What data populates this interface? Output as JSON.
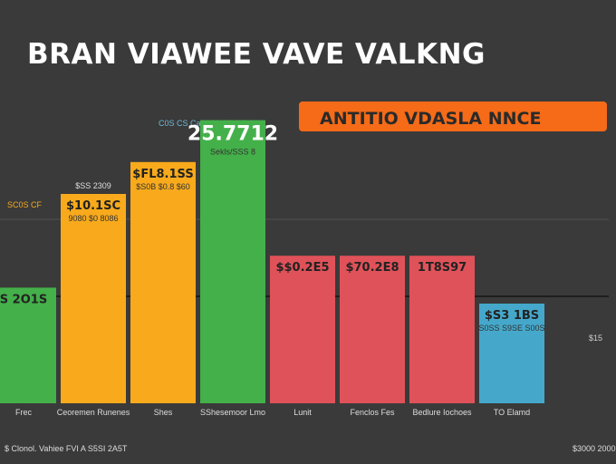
{
  "chart_data": {
    "type": "bar",
    "title": "BRAN VIAWEE VAVE VALKNG",
    "banner": "ANTITIO VDASLA NNCE",
    "top_annotation": "C0S CS CaiN  $8 SS.GS 0II",
    "left_annotation": "SC0S CF",
    "right_axis_label": "$15",
    "footer_left": "$ Clonol. Vahiee  FVI A  S5SI 2A5T",
    "footer_right": "$3000 2000",
    "bars": [
      {
        "category": "Frec",
        "value": 0.29,
        "color": "#44b04a",
        "label": "S 2O1S",
        "sublabel": ""
      },
      {
        "category": "Ceoremen Runenes",
        "value": 0.525,
        "color": "#f8aa1c",
        "label": "$10.1SC",
        "sublabel": "9080 $0 8086",
        "top_label": "$SS 2309"
      },
      {
        "category": "Shes",
        "value": 0.605,
        "color": "#f8aa1c",
        "label": "$FL8.1SS",
        "sublabel": "$S0B $0.8 $60"
      },
      {
        "category": "SShesemoor Lmo",
        "value": 0.71,
        "color": "#44b04a",
        "label": "25.7712",
        "sublabel": "Sekls/SSS 8"
      },
      {
        "category": "Lunit",
        "value": 0.37,
        "color": "#e05259",
        "label": "$$0.2E5",
        "sublabel": ""
      },
      {
        "category": "Fenclos Fes",
        "value": 0.37,
        "color": "#e05259",
        "label": "$70.2E8",
        "sublabel": ""
      },
      {
        "category": "Bedlure Iochoes",
        "value": 0.37,
        "color": "#e05259",
        "label": "1T8S97",
        "sublabel": ""
      },
      {
        "category": "TO Elamd",
        "value": 0.25,
        "color": "#45a8cb",
        "label": "$S3 1BS",
        "sublabel": "S0SS S9SE S00S"
      }
    ]
  }
}
